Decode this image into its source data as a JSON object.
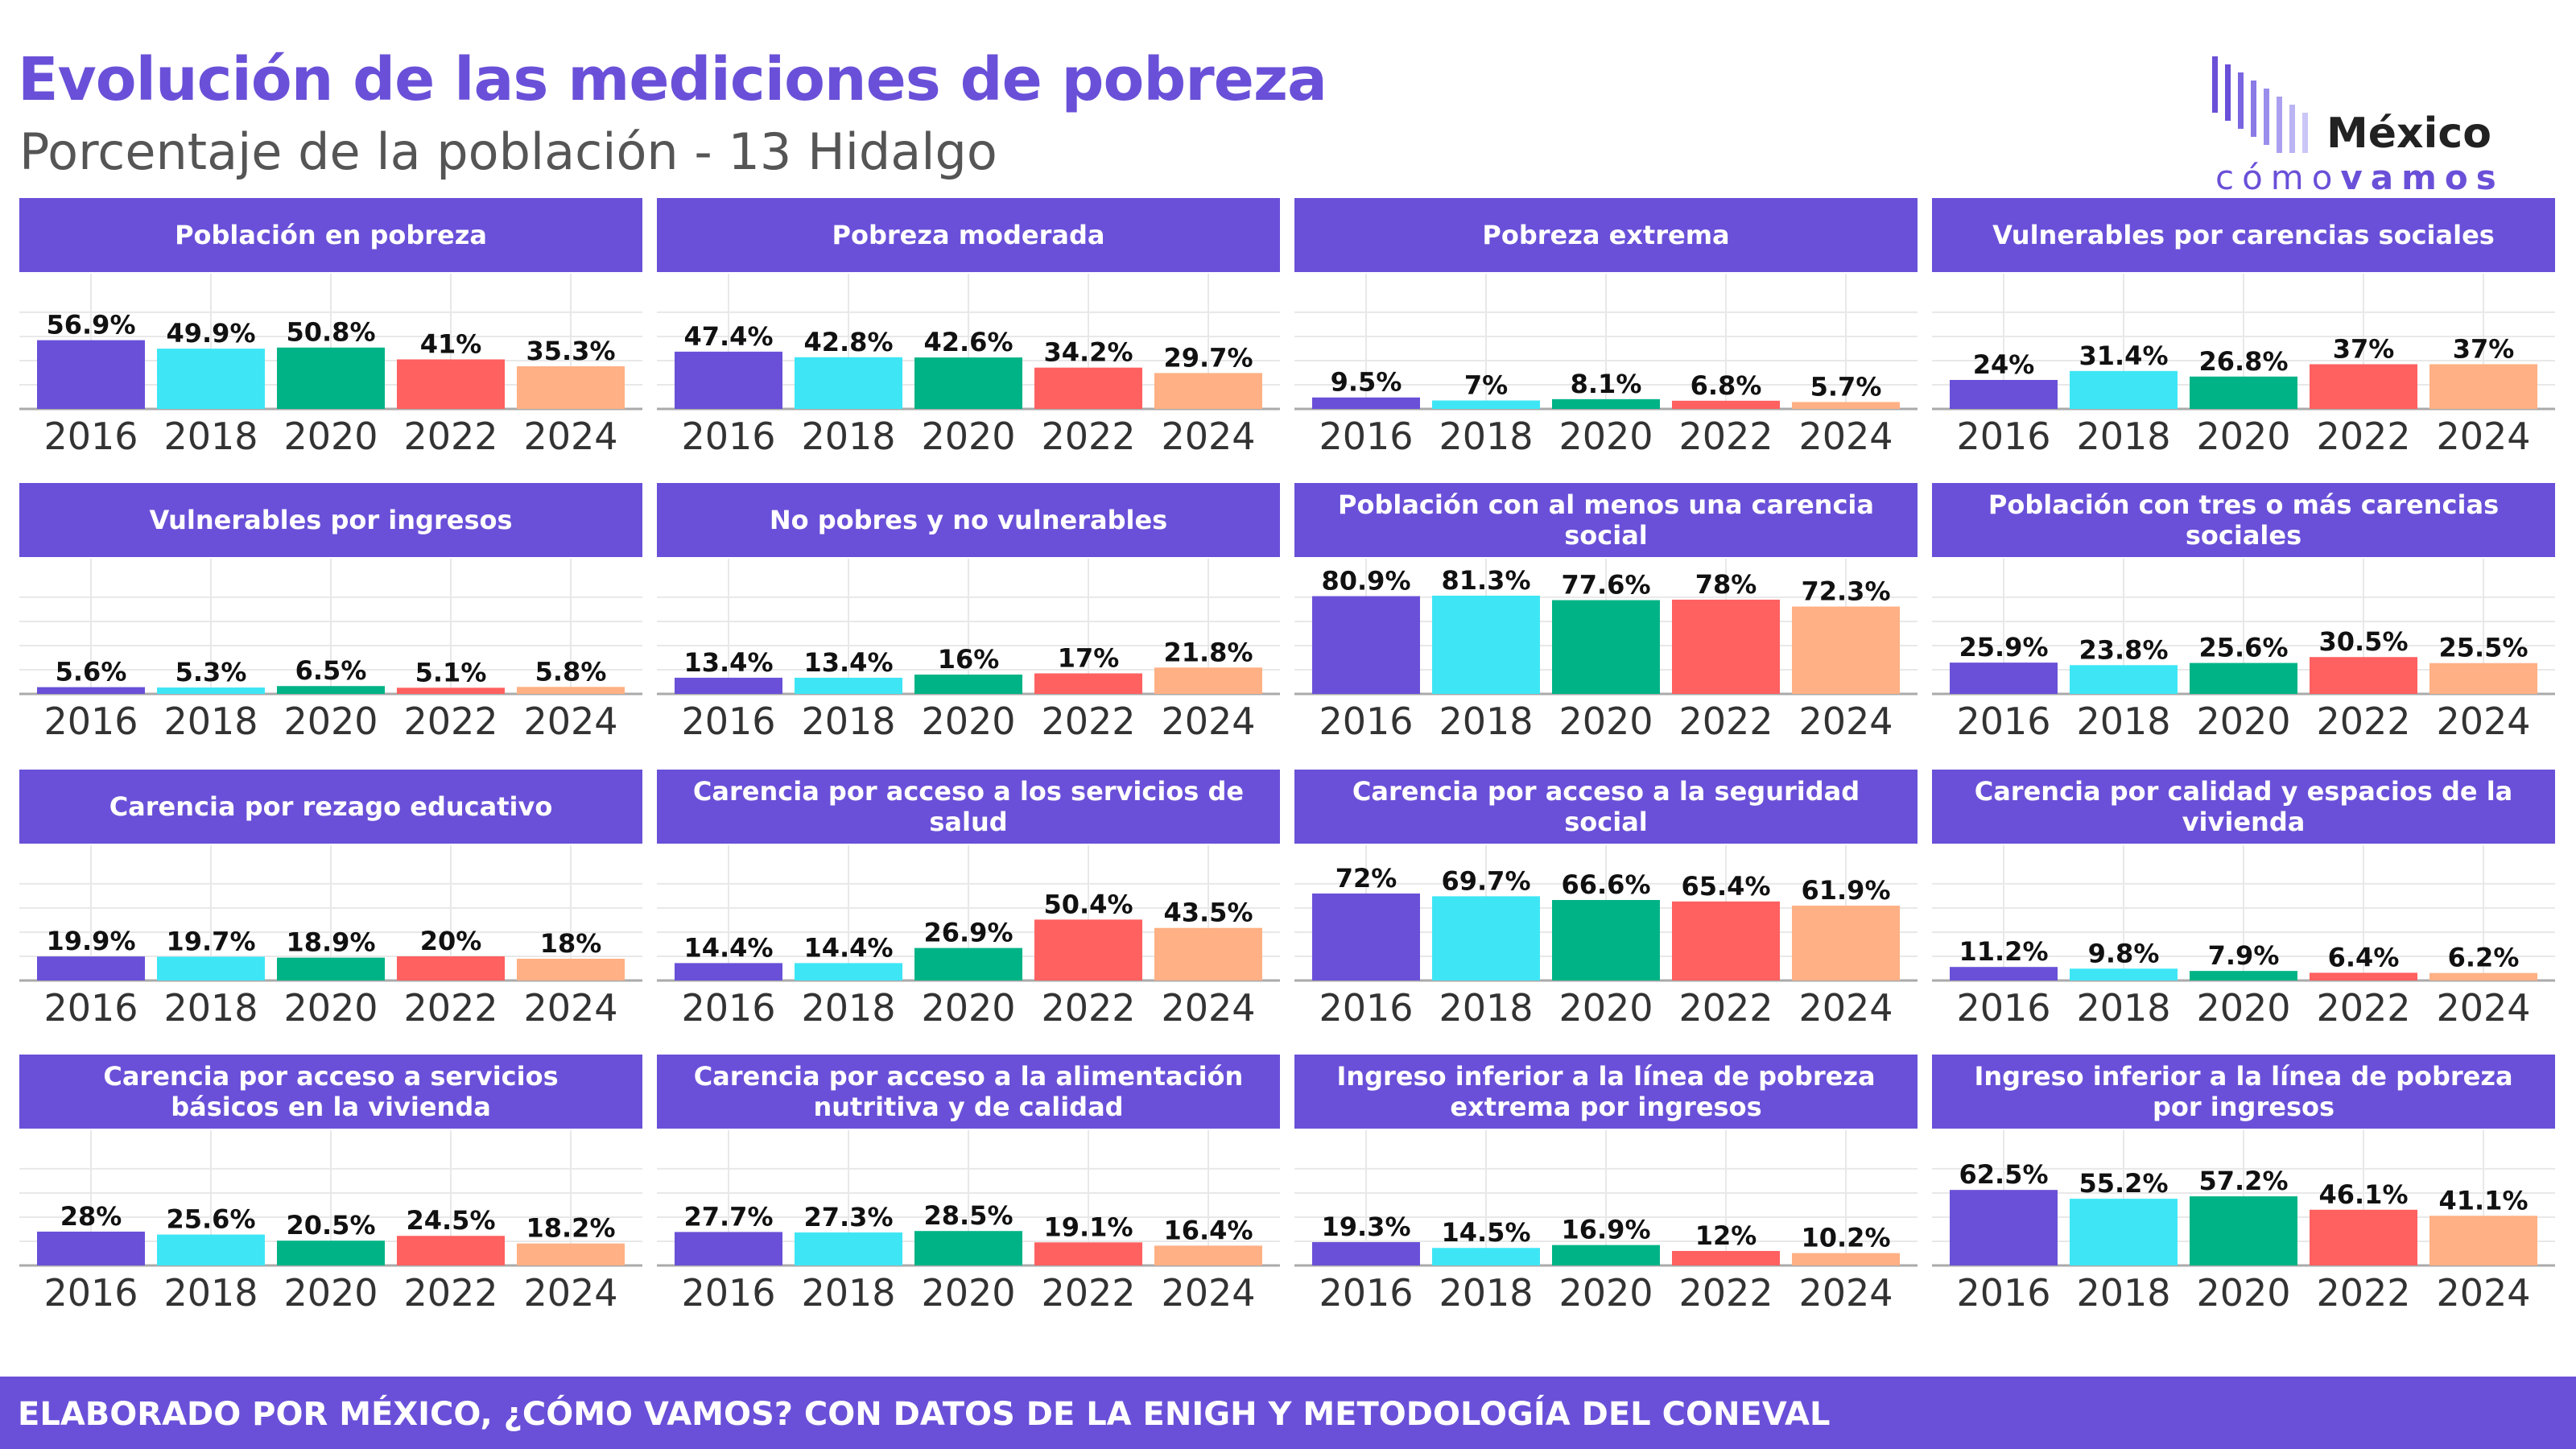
{
  "header": {
    "title": "Evolución de las mediciones de pobreza",
    "subtitle": "Porcentaje de la población - 13 Hidalgo"
  },
  "logo": {
    "word": "México",
    "sub_prefix": "cómo",
    "sub_bold": "vamos"
  },
  "footer": {
    "text": "ELABORADO POR MÉXICO, ¿CÓMO VAMOS? CON DATOS DE LA ENIGH Y METODOLOGÍA DEL CONEVAL"
  },
  "colors": {
    "accent": "#6a50d8",
    "years": [
      "#6a50d8",
      "#3ee6f5",
      "#00b386",
      "#ff6060",
      "#ffb084"
    ],
    "grid": "#e8e8e8",
    "axis": "#aaaaaa"
  },
  "chart_data": [
    {
      "type": "bar",
      "title": "Población en pobreza",
      "categories": [
        "2016",
        "2018",
        "2020",
        "2022",
        "2024"
      ],
      "values": [
        56.9,
        49.9,
        50.8,
        41,
        35.3
      ],
      "labels": [
        "56.9%",
        "49.9%",
        "50.8%",
        "41%",
        "35.3%"
      ],
      "ylim": [
        0,
        100
      ]
    },
    {
      "type": "bar",
      "title": "Pobreza moderada",
      "categories": [
        "2016",
        "2018",
        "2020",
        "2022",
        "2024"
      ],
      "values": [
        47.4,
        42.8,
        42.6,
        34.2,
        29.7
      ],
      "labels": [
        "47.4%",
        "42.8%",
        "42.6%",
        "34.2%",
        "29.7%"
      ],
      "ylim": [
        0,
        100
      ]
    },
    {
      "type": "bar",
      "title": "Pobreza extrema",
      "categories": [
        "2016",
        "2018",
        "2020",
        "2022",
        "2024"
      ],
      "values": [
        9.5,
        7,
        8.1,
        6.8,
        5.7
      ],
      "labels": [
        "9.5%",
        "7%",
        "8.1%",
        "6.8%",
        "5.7%"
      ],
      "ylim": [
        0,
        100
      ]
    },
    {
      "type": "bar",
      "title": "Vulnerables por carencias sociales",
      "categories": [
        "2016",
        "2018",
        "2020",
        "2022",
        "2024"
      ],
      "values": [
        24,
        31.4,
        26.8,
        37,
        37
      ],
      "labels": [
        "24%",
        "31.4%",
        "26.8%",
        "37%",
        "37%"
      ],
      "ylim": [
        0,
        100
      ]
    },
    {
      "type": "bar",
      "title": "Vulnerables por ingresos",
      "categories": [
        "2016",
        "2018",
        "2020",
        "2022",
        "2024"
      ],
      "values": [
        5.6,
        5.3,
        6.5,
        5.1,
        5.8
      ],
      "labels": [
        "5.6%",
        "5.3%",
        "6.5%",
        "5.1%",
        "5.8%"
      ],
      "ylim": [
        0,
        100
      ]
    },
    {
      "type": "bar",
      "title": "No pobres y no vulnerables",
      "categories": [
        "2016",
        "2018",
        "2020",
        "2022",
        "2024"
      ],
      "values": [
        13.4,
        13.4,
        16,
        17,
        21.8
      ],
      "labels": [
        "13.4%",
        "13.4%",
        "16%",
        "17%",
        "21.8%"
      ],
      "ylim": [
        0,
        100
      ]
    },
    {
      "type": "bar",
      "title": "Población con al menos una carencia social",
      "categories": [
        "2016",
        "2018",
        "2020",
        "2022",
        "2024"
      ],
      "values": [
        80.9,
        81.3,
        77.6,
        78,
        72.3
      ],
      "labels": [
        "80.9%",
        "81.3%",
        "77.6%",
        "78%",
        "72.3%"
      ],
      "ylim": [
        0,
        100
      ]
    },
    {
      "type": "bar",
      "title": "Población con tres o más carencias sociales",
      "categories": [
        "2016",
        "2018",
        "2020",
        "2022",
        "2024"
      ],
      "values": [
        25.9,
        23.8,
        25.6,
        30.5,
        25.5
      ],
      "labels": [
        "25.9%",
        "23.8%",
        "25.6%",
        "30.5%",
        "25.5%"
      ],
      "ylim": [
        0,
        100
      ]
    },
    {
      "type": "bar",
      "title": "Carencia por rezago educativo",
      "categories": [
        "2016",
        "2018",
        "2020",
        "2022",
        "2024"
      ],
      "values": [
        19.9,
        19.7,
        18.9,
        20,
        18
      ],
      "labels": [
        "19.9%",
        "19.7%",
        "18.9%",
        "20%",
        "18%"
      ],
      "ylim": [
        0,
        100
      ]
    },
    {
      "type": "bar",
      "title": "Carencia por acceso a los servicios de salud",
      "categories": [
        "2016",
        "2018",
        "2020",
        "2022",
        "2024"
      ],
      "values": [
        14.4,
        14.4,
        26.9,
        50.4,
        43.5
      ],
      "labels": [
        "14.4%",
        "14.4%",
        "26.9%",
        "50.4%",
        "43.5%"
      ],
      "ylim": [
        0,
        100
      ]
    },
    {
      "type": "bar",
      "title": "Carencia por acceso a la seguridad social",
      "categories": [
        "2016",
        "2018",
        "2020",
        "2022",
        "2024"
      ],
      "values": [
        72,
        69.7,
        66.6,
        65.4,
        61.9
      ],
      "labels": [
        "72%",
        "69.7%",
        "66.6%",
        "65.4%",
        "61.9%"
      ],
      "ylim": [
        0,
        100
      ]
    },
    {
      "type": "bar",
      "title": "Carencia por calidad y espacios de la vivienda",
      "categories": [
        "2016",
        "2018",
        "2020",
        "2022",
        "2024"
      ],
      "values": [
        11.2,
        9.8,
        7.9,
        6.4,
        6.2
      ],
      "labels": [
        "11.2%",
        "9.8%",
        "7.9%",
        "6.4%",
        "6.2%"
      ],
      "ylim": [
        0,
        100
      ]
    },
    {
      "type": "bar",
      "title": "Carencia por acceso a servicios básicos en la vivienda",
      "categories": [
        "2016",
        "2018",
        "2020",
        "2022",
        "2024"
      ],
      "values": [
        28,
        25.6,
        20.5,
        24.5,
        18.2
      ],
      "labels": [
        "28%",
        "25.6%",
        "20.5%",
        "24.5%",
        "18.2%"
      ],
      "ylim": [
        0,
        100
      ]
    },
    {
      "type": "bar",
      "title": "Carencia por acceso a la alimentación nutritiva y de calidad",
      "categories": [
        "2016",
        "2018",
        "2020",
        "2022",
        "2024"
      ],
      "values": [
        27.7,
        27.3,
        28.5,
        19.1,
        16.4
      ],
      "labels": [
        "27.7%",
        "27.3%",
        "28.5%",
        "19.1%",
        "16.4%"
      ],
      "ylim": [
        0,
        100
      ]
    },
    {
      "type": "bar",
      "title": "Ingreso inferior a la línea de pobreza extrema por ingresos",
      "categories": [
        "2016",
        "2018",
        "2020",
        "2022",
        "2024"
      ],
      "values": [
        19.3,
        14.5,
        16.9,
        12,
        10.2
      ],
      "labels": [
        "19.3%",
        "14.5%",
        "16.9%",
        "12%",
        "10.2%"
      ],
      "ylim": [
        0,
        100
      ]
    },
    {
      "type": "bar",
      "title": "Ingreso inferior a la línea de pobreza por ingresos",
      "categories": [
        "2016",
        "2018",
        "2020",
        "2022",
        "2024"
      ],
      "values": [
        62.5,
        55.2,
        57.2,
        46.1,
        41.1
      ],
      "labels": [
        "62.5%",
        "55.2%",
        "57.2%",
        "46.1%",
        "41.1%"
      ],
      "ylim": [
        0,
        100
      ]
    }
  ]
}
